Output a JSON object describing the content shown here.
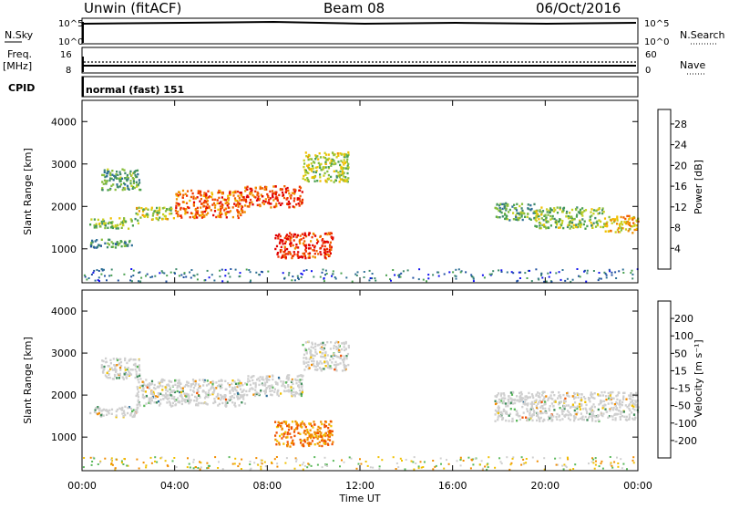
{
  "header": {
    "station": "Unwin (fitACF)",
    "beam": "Beam 08",
    "date": "06/Oct/2016"
  },
  "top_panels": {
    "nsky_label": "N.Sky",
    "nsky_ticks": [
      "10^5",
      "10^0"
    ],
    "nsearch_label": "N.Search",
    "freq_label": "Freq.",
    "freq_unit": "[MHz]",
    "freq_ticks": [
      "16",
      "8"
    ],
    "nave_label": "Nave",
    "nave_ticks": [
      "60",
      "0"
    ],
    "cpid_label": "CPID",
    "cpid_value": "normal (fast) 151"
  },
  "chart_data": [
    {
      "type": "heatmap",
      "name": "power",
      "ylabel": "Slant Range [km]",
      "ylim": [
        200,
        4500
      ],
      "yticks": [
        "1000",
        "2000",
        "3000",
        "4000"
      ],
      "xlim": [
        0,
        24
      ],
      "colorbar": {
        "label": "Power [dB]",
        "ticks": [
          "4",
          "8",
          "12",
          "16",
          "20",
          "24",
          "28"
        ],
        "colors": [
          "#1010f0",
          "#2050a0",
          "#2e6f96",
          "#3f8a6c",
          "#4aa050",
          "#86bd3c",
          "#c8d020",
          "#f0c000",
          "#f09000",
          "#f06000",
          "#f03000",
          "#e00000"
        ]
      },
      "regions": [
        {
          "t0": 0.3,
          "t1": 2.4,
          "r0": 1500,
          "r1": 1750,
          "level": 0.45
        },
        {
          "t0": 0.3,
          "t1": 2.2,
          "r0": 1050,
          "r1": 1250,
          "level": 0.3
        },
        {
          "t0": 0.8,
          "t1": 2.5,
          "r0": 2400,
          "r1": 2900,
          "level": 0.35
        },
        {
          "t0": 2.3,
          "t1": 4.0,
          "r0": 1700,
          "r1": 2000,
          "level": 0.55
        },
        {
          "t0": 4.0,
          "t1": 7.0,
          "r0": 1750,
          "r1": 2400,
          "level": 0.8
        },
        {
          "t0": 7.0,
          "t1": 9.5,
          "r0": 2000,
          "r1": 2500,
          "level": 0.85
        },
        {
          "t0": 9.5,
          "t1": 11.5,
          "r0": 2600,
          "r1": 3300,
          "level": 0.5
        },
        {
          "t0": 8.3,
          "t1": 10.8,
          "r0": 800,
          "r1": 1400,
          "level": 0.9
        },
        {
          "t0": 17.8,
          "t1": 19.5,
          "r0": 1700,
          "r1": 2100,
          "level": 0.35
        },
        {
          "t0": 19.5,
          "t1": 22.5,
          "r0": 1500,
          "r1": 2000,
          "level": 0.45
        },
        {
          "t0": 22.5,
          "t1": 24.0,
          "r0": 1400,
          "r1": 1800,
          "level": 0.65
        }
      ]
    },
    {
      "type": "heatmap",
      "name": "velocity",
      "xlabel": "Time UT",
      "ylabel": "Slant Range [km]",
      "ylim": [
        200,
        4500
      ],
      "yticks": [
        "1000",
        "2000",
        "3000",
        "4000"
      ],
      "xticks": [
        "00:00",
        "04:00",
        "08:00",
        "12:00",
        "16:00",
        "20:00",
        "00:00"
      ],
      "xlim": [
        0,
        24
      ],
      "colorbar": {
        "label": "Velocity [m s⁻¹]",
        "ticks": [
          "200",
          "100",
          "50",
          "15",
          "-15",
          "-50",
          "-100",
          "-200"
        ],
        "colors": [
          "#1a3ca8",
          "#2f6f9a",
          "#3f8d5a",
          "#5ab85a",
          "#cfcfcf",
          "#f0c000",
          "#f08c00",
          "#f05000",
          "#e00000"
        ]
      },
      "regions": [
        {
          "t0": 0.3,
          "t1": 2.4,
          "r0": 1500,
          "r1": 1750,
          "level": 0.5
        },
        {
          "t0": 0.8,
          "t1": 2.5,
          "r0": 2400,
          "r1": 2900,
          "level": 0.5
        },
        {
          "t0": 2.3,
          "t1": 7.0,
          "r0": 1750,
          "r1": 2400,
          "level": 0.5
        },
        {
          "t0": 7.0,
          "t1": 9.5,
          "r0": 2000,
          "r1": 2500,
          "level": 0.5
        },
        {
          "t0": 9.5,
          "t1": 11.5,
          "r0": 2600,
          "r1": 3300,
          "level": 0.5
        },
        {
          "t0": 8.3,
          "t1": 10.8,
          "r0": 800,
          "r1": 1400,
          "level": 0.25
        },
        {
          "t0": 17.8,
          "t1": 24.0,
          "r0": 1400,
          "r1": 2100,
          "level": 0.5
        }
      ]
    }
  ]
}
